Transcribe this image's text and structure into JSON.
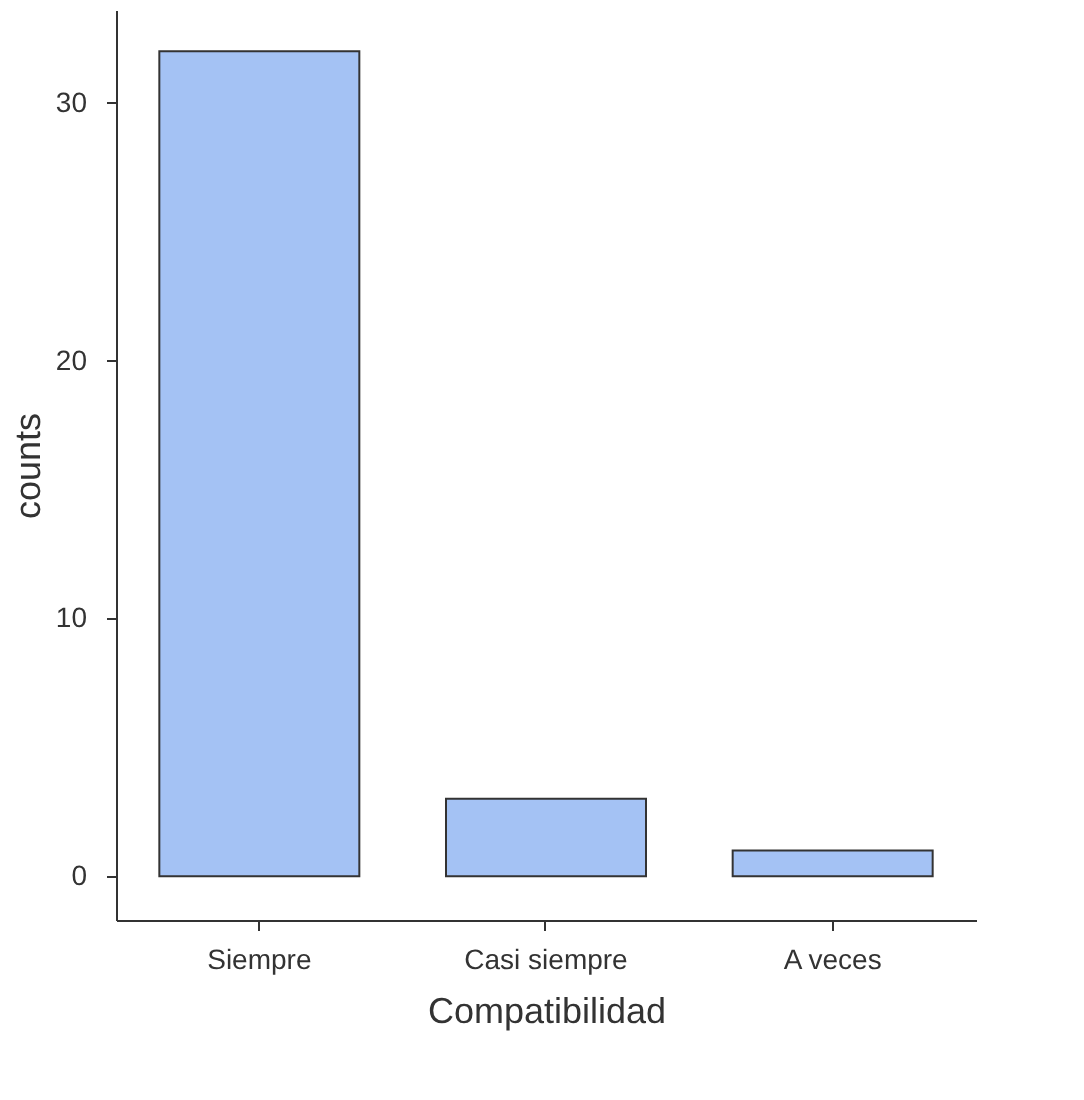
{
  "chart_data": {
    "type": "bar",
    "xlabel": "Compatibilidad",
    "ylabel": "counts",
    "categories": [
      "Siempre",
      "Casi siempre",
      "A veces"
    ],
    "values": [
      32,
      3,
      1
    ],
    "color": "#a4c2f4",
    "ylim": [
      -1.7,
      33.6
    ],
    "yticks": [
      0,
      10,
      20,
      30
    ],
    "grid": false
  }
}
